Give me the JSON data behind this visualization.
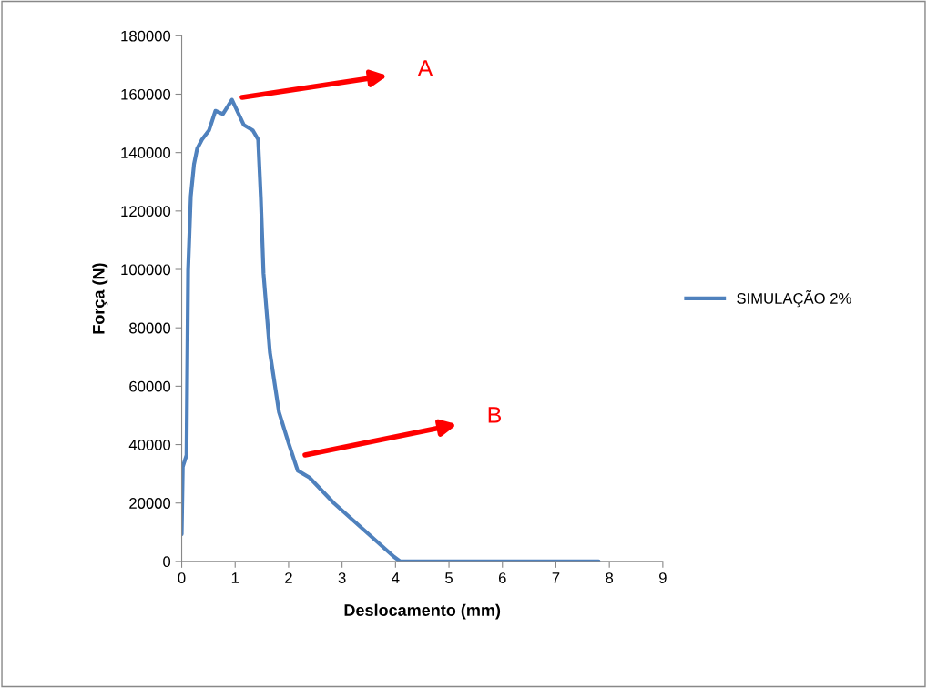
{
  "chart_data": {
    "type": "line",
    "xlabel": "Deslocamento (mm)",
    "ylabel": "Força (N)",
    "xlim": [
      0,
      9
    ],
    "xticks": [
      0,
      1,
      2,
      3,
      4,
      5,
      6,
      7,
      8,
      9
    ],
    "ylim": [
      0,
      180000
    ],
    "yticks": [
      0,
      20000,
      40000,
      60000,
      80000,
      100000,
      120000,
      140000,
      160000,
      180000
    ],
    "grid": false,
    "legend": "right",
    "marker": "none",
    "line_style": "solid",
    "series": [
      {
        "name": "SIMULAÇÃO 2%",
        "color": "#4f81bd",
        "x": [
          0,
          0.02,
          0.09,
          0.12,
          0.17,
          0.23,
          0.29,
          0.38,
          0.51,
          0.63,
          0.77,
          0.94,
          1.16,
          1.33,
          1.43,
          1.48,
          1.53,
          1.65,
          1.82,
          2.0,
          2.17,
          2.39,
          2.85,
          3.97,
          4.09,
          5,
          6,
          7,
          7.8
        ],
        "values": [
          9300,
          32400,
          36400,
          99700,
          125000,
          136000,
          141400,
          144500,
          147600,
          154300,
          153200,
          158100,
          149500,
          147600,
          144500,
          124600,
          98700,
          71600,
          51100,
          40500,
          31100,
          28700,
          19900,
          1600,
          0,
          0,
          0,
          0,
          0
        ]
      }
    ],
    "annotations": [
      "A",
      "B"
    ]
  }
}
